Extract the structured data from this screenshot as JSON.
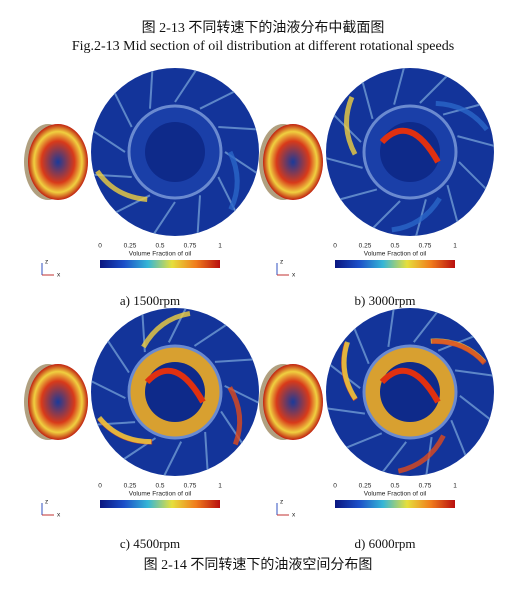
{
  "header": {
    "caption_cn": "图 2-13 不同转速下的油液分布中截面图",
    "caption_en": "Fig.2-13 Mid section of oil distribution at different rotational speeds"
  },
  "panels": [
    {
      "label": "a) 1500rpm",
      "colorbar": {
        "title": "Volume Fraction of oil",
        "ticks": [
          0,
          0.25,
          0.5,
          0.75,
          1
        ]
      },
      "axes": [
        "z",
        "x"
      ]
    },
    {
      "label": "b) 3000rpm",
      "colorbar": {
        "title": "Volume Fraction of oil",
        "ticks": [
          0,
          0.25,
          0.5,
          0.75,
          1
        ]
      },
      "axes": [
        "z",
        "x"
      ]
    },
    {
      "label": "c) 4500rpm",
      "colorbar": {
        "title": "Volume Fraction of oil",
        "ticks": [
          0,
          0.25,
          0.5,
          0.75,
          1
        ]
      },
      "axes": [
        "z",
        "x"
      ]
    },
    {
      "label": "d) 6000rpm",
      "colorbar": {
        "title": "Volume Fraction of oil",
        "ticks": [
          0,
          0.25,
          0.5,
          0.75,
          1
        ]
      },
      "axes": [
        "z",
        "x"
      ]
    }
  ],
  "footer": {
    "caption_cn": "图 2-14 不同转速下的油液空间分布图"
  }
}
